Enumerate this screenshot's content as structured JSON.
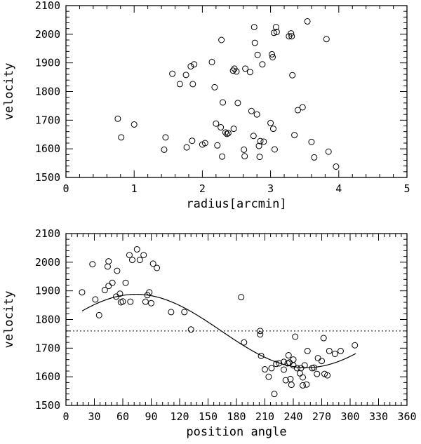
{
  "chart_data": [
    {
      "type": "scatter",
      "xlabel": "radius[arcmin]",
      "ylabel": "velocity",
      "xlim": [
        0,
        5
      ],
      "ylim": [
        1500,
        2100
      ],
      "xticks": [
        0,
        1,
        2,
        3,
        4,
        5
      ],
      "yticks": [
        1500,
        1600,
        1700,
        1800,
        1900,
        2000,
        2100
      ],
      "grid": false,
      "points": [
        [
          0.76,
          1705
        ],
        [
          0.81,
          1640
        ],
        [
          1.0,
          1685
        ],
        [
          1.44,
          1597
        ],
        [
          1.46,
          1640
        ],
        [
          1.56,
          1862
        ],
        [
          1.67,
          1826
        ],
        [
          1.76,
          1858
        ],
        [
          1.77,
          1605
        ],
        [
          1.83,
          1888
        ],
        [
          1.85,
          1628
        ],
        [
          1.86,
          1826
        ],
        [
          1.88,
          1895
        ],
        [
          2.0,
          1615
        ],
        [
          2.04,
          1620
        ],
        [
          2.14,
          1903
        ],
        [
          2.18,
          1815
        ],
        [
          2.2,
          1688
        ],
        [
          2.22,
          1612
        ],
        [
          2.27,
          1675
        ],
        [
          2.28,
          1980
        ],
        [
          2.29,
          1573
        ],
        [
          2.3,
          1762
        ],
        [
          2.34,
          1657
        ],
        [
          2.36,
          1652
        ],
        [
          2.38,
          1655
        ],
        [
          2.45,
          1873
        ],
        [
          2.46,
          1670
        ],
        [
          2.47,
          1880
        ],
        [
          2.5,
          1870
        ],
        [
          2.52,
          1760
        ],
        [
          2.61,
          1597
        ],
        [
          2.62,
          1574
        ],
        [
          2.63,
          1880
        ],
        [
          2.7,
          1868
        ],
        [
          2.72,
          1732
        ],
        [
          2.75,
          1645
        ],
        [
          2.76,
          2025
        ],
        [
          2.77,
          1970
        ],
        [
          2.8,
          1720
        ],
        [
          2.81,
          1928
        ],
        [
          2.83,
          1610
        ],
        [
          2.84,
          1572
        ],
        [
          2.85,
          1627
        ],
        [
          2.88,
          1895
        ],
        [
          2.9,
          1625
        ],
        [
          3.0,
          1690
        ],
        [
          3.02,
          1930
        ],
        [
          3.03,
          1920
        ],
        [
          3.04,
          1670
        ],
        [
          3.05,
          2005
        ],
        [
          3.06,
          1598
        ],
        [
          3.08,
          2025
        ],
        [
          3.09,
          2008
        ],
        [
          3.27,
          1993
        ],
        [
          3.3,
          2003
        ],
        [
          3.31,
          1993
        ],
        [
          3.32,
          1857
        ],
        [
          3.35,
          1648
        ],
        [
          3.4,
          1735
        ],
        [
          3.47,
          1745
        ],
        [
          3.54,
          2045
        ],
        [
          3.6,
          1624
        ],
        [
          3.64,
          1570
        ],
        [
          3.82,
          1983
        ],
        [
          3.85,
          1590
        ],
        [
          3.96,
          1538
        ]
      ]
    },
    {
      "type": "scatter",
      "xlabel": "position angle",
      "ylabel": "velocity",
      "xlim": [
        0,
        360
      ],
      "ylim": [
        1500,
        2100
      ],
      "xticks": [
        0,
        30,
        60,
        90,
        120,
        150,
        180,
        210,
        240,
        270,
        300,
        330,
        360
      ],
      "yticks": [
        1500,
        1600,
        1700,
        1800,
        1900,
        2000,
        2100
      ],
      "grid": false,
      "reference_line": {
        "y": 1760,
        "style": "dotted"
      },
      "fit_curve": {
        "type": "sinusoid",
        "mean": 1760,
        "amplitude": 128,
        "phase_deg": 74,
        "x_range": [
          17,
          306
        ]
      },
      "points": [
        [
          17,
          1895
        ],
        [
          28,
          1993
        ],
        [
          31,
          1870
        ],
        [
          35,
          1815
        ],
        [
          41,
          1903
        ],
        [
          44,
          1985
        ],
        [
          45,
          2003
        ],
        [
          45,
          1917
        ],
        [
          49,
          1928
        ],
        [
          53,
          1880
        ],
        [
          54,
          1970
        ],
        [
          57,
          1890
        ],
        [
          58,
          1860
        ],
        [
          60,
          1863
        ],
        [
          63,
          1928
        ],
        [
          67,
          2025
        ],
        [
          68,
          1862
        ],
        [
          70,
          2008
        ],
        [
          75,
          2045
        ],
        [
          78,
          2008
        ],
        [
          82,
          2025
        ],
        [
          84,
          1862
        ],
        [
          86,
          1885
        ],
        [
          88,
          1895
        ],
        [
          90,
          1857
        ],
        [
          92,
          1995
        ],
        [
          96,
          1980
        ],
        [
          111,
          1826
        ],
        [
          125,
          1826
        ],
        [
          132,
          1765
        ],
        [
          185,
          1878
        ],
        [
          188,
          1720
        ],
        [
          205,
          1760
        ],
        [
          205,
          1748
        ],
        [
          206,
          1673
        ],
        [
          210,
          1626
        ],
        [
          214,
          1600
        ],
        [
          217,
          1630
        ],
        [
          220,
          1540
        ],
        [
          222,
          1645
        ],
        [
          225,
          1647
        ],
        [
          230,
          1652
        ],
        [
          230,
          1625
        ],
        [
          232,
          1588
        ],
        [
          234,
          1647
        ],
        [
          235,
          1675
        ],
        [
          236,
          1650
        ],
        [
          237,
          1592
        ],
        [
          238,
          1572
        ],
        [
          240,
          1660
        ],
        [
          240,
          1640
        ],
        [
          242,
          1740
        ],
        [
          244,
          1630
        ],
        [
          247,
          1612
        ],
        [
          248,
          1630
        ],
        [
          250,
          1570
        ],
        [
          250,
          1598
        ],
        [
          252,
          1640
        ],
        [
          254,
          1573
        ],
        [
          255,
          1690
        ],
        [
          260,
          1630
        ],
        [
          262,
          1632
        ],
        [
          265,
          1610
        ],
        [
          266,
          1665
        ],
        [
          270,
          1655
        ],
        [
          272,
          1735
        ],
        [
          273,
          1610
        ],
        [
          276,
          1605
        ],
        [
          278,
          1690
        ],
        [
          284,
          1680
        ],
        [
          290,
          1690
        ],
        [
          305,
          1710
        ]
      ]
    }
  ]
}
